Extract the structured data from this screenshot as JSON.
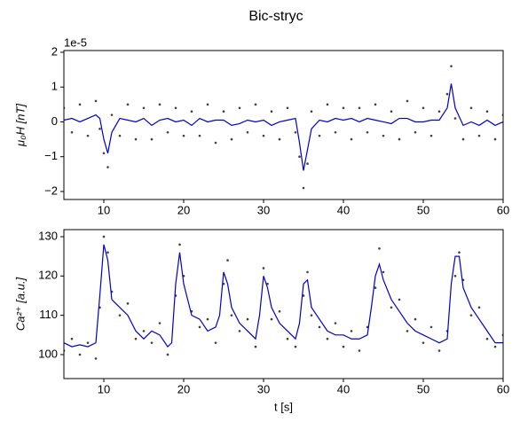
{
  "title": "Bic-stryc",
  "chart_data": [
    {
      "type": "line",
      "ylabel": "μ₀H [nT]",
      "y_offset_label": "1e-5",
      "xlim": [
        5,
        60
      ],
      "xticks": [
        10,
        20,
        30,
        40,
        50,
        60
      ],
      "ylim": [
        -2.23,
        2.05
      ],
      "yticks": [
        {
          "value": -2,
          "label": "−2"
        },
        {
          "value": -1,
          "label": "−1"
        },
        0,
        1,
        2
      ],
      "series": [
        {
          "type": "scatter",
          "color": "#000000",
          "x": [
            5,
            6,
            7,
            8,
            9,
            9.5,
            10,
            10.5,
            11,
            12,
            13,
            14,
            15,
            16,
            17,
            18,
            19,
            20,
            21,
            22,
            23,
            24,
            25,
            26,
            27,
            28,
            29,
            30,
            31,
            32,
            33,
            34,
            34.5,
            35,
            35.5,
            36,
            37,
            38,
            39,
            40,
            41,
            42,
            43,
            44,
            45,
            46,
            47,
            48,
            49,
            50,
            51,
            52,
            53,
            53.5,
            54,
            55,
            56,
            57,
            58,
            59,
            60
          ],
          "values": [
            0.4,
            -0.3,
            0.5,
            -0.4,
            0.6,
            -0.2,
            -0.9,
            -1.3,
            0.2,
            -0.4,
            0.5,
            -0.5,
            0.4,
            -0.5,
            0.5,
            -0.3,
            0.4,
            -0.4,
            0.3,
            -0.4,
            0.5,
            -0.6,
            0.3,
            -0.5,
            0.4,
            -0.3,
            0.5,
            -0.4,
            0.3,
            -0.5,
            0.4,
            -0.3,
            -1.0,
            -1.9,
            -1.2,
            0.3,
            -0.4,
            0.5,
            -0.3,
            0.4,
            -0.5,
            0.4,
            -0.3,
            0.5,
            -0.4,
            0.3,
            -0.5,
            0.6,
            -0.3,
            0.4,
            -0.4,
            0.3,
            0.8,
            1.6,
            0.1,
            -0.5,
            0.4,
            -0.4,
            0.3,
            -0.5,
            0.2
          ]
        },
        {
          "type": "line",
          "color": "#0000cc",
          "x": [
            5,
            6,
            7,
            8,
            9,
            9.5,
            10,
            10.5,
            11,
            12,
            13,
            14,
            15,
            16,
            17,
            18,
            19,
            20,
            21,
            22,
            23,
            24,
            25,
            26,
            27,
            28,
            29,
            30,
            31,
            32,
            33,
            34,
            34.5,
            35,
            35.5,
            36,
            37,
            38,
            39,
            40,
            41,
            42,
            43,
            44,
            45,
            46,
            47,
            48,
            49,
            50,
            51,
            52,
            53,
            53.5,
            54,
            55,
            56,
            57,
            58,
            59,
            60
          ],
          "values": [
            0.05,
            0.1,
            0,
            0.1,
            0.2,
            0.1,
            -0.5,
            -0.9,
            -0.3,
            0.1,
            0.05,
            0,
            0.1,
            -0.1,
            0.05,
            0.1,
            0,
            0.05,
            -0.1,
            0.1,
            0,
            0.05,
            0.05,
            -0.1,
            -0.05,
            0.05,
            0,
            0.05,
            -0.1,
            0,
            0.05,
            0.1,
            -0.6,
            -1.4,
            -0.8,
            -0.2,
            0.05,
            0,
            0.1,
            0.05,
            0.1,
            0,
            0.1,
            0.05,
            0,
            -0.05,
            0.1,
            0.1,
            0,
            0,
            0.05,
            0.05,
            0.4,
            1.1,
            0.4,
            -0.1,
            0,
            -0.1,
            0.05,
            -0.1,
            0
          ]
        }
      ]
    },
    {
      "type": "line",
      "ylabel": "Ca²⁺ [a.u.]",
      "xlabel": "t [s]",
      "xlim": [
        5,
        60
      ],
      "xticks": [
        10,
        20,
        30,
        40,
        50,
        60
      ],
      "ylim": [
        93.9,
        131.8
      ],
      "yticks": [
        100,
        110,
        120,
        130
      ],
      "series": [
        {
          "type": "scatter",
          "color": "#000000",
          "x": [
            5,
            6,
            7,
            8,
            9,
            9.5,
            10,
            10.5,
            11,
            12,
            13,
            14,
            15,
            16,
            17,
            18,
            19,
            19.5,
            20,
            21,
            22,
            23,
            24,
            25,
            25.5,
            26,
            27,
            28,
            29,
            30,
            30.5,
            31,
            32,
            33,
            34,
            35,
            35.5,
            36,
            37,
            38,
            39,
            40,
            41,
            42,
            43,
            44,
            44.5,
            45,
            46,
            47,
            48,
            49,
            50,
            51,
            52,
            53,
            54,
            54.5,
            55,
            56,
            57,
            58,
            59,
            60
          ],
          "values": [
            101,
            104,
            100,
            103,
            99,
            112,
            130,
            126,
            116,
            110,
            113,
            104,
            106,
            103,
            108,
            100,
            115,
            128,
            120,
            111,
            107,
            109,
            103,
            118,
            124,
            110,
            106,
            109,
            102,
            122,
            118,
            109,
            111,
            104,
            102,
            115,
            121,
            110,
            107,
            104,
            108,
            102,
            106,
            101,
            107,
            117,
            127,
            121,
            112,
            114,
            106,
            109,
            103,
            107,
            101,
            106,
            120,
            126,
            119,
            110,
            112,
            104,
            102,
            105
          ]
        },
        {
          "type": "line",
          "color": "#0000cc",
          "x": [
            5,
            6,
            7,
            8,
            9,
            9.5,
            10,
            10.5,
            11,
            12,
            13,
            14,
            15,
            16,
            17,
            18,
            18.5,
            19,
            19.5,
            20,
            21,
            22,
            23,
            24,
            24.5,
            25,
            25.5,
            26,
            27,
            28,
            29,
            29.5,
            30,
            30.5,
            31,
            32,
            33,
            34,
            34.5,
            35,
            35.5,
            36,
            37,
            38,
            39,
            40,
            41,
            42,
            43,
            43.5,
            44,
            44.5,
            45,
            46,
            47,
            48,
            49,
            50,
            51,
            52,
            53,
            53.5,
            54,
            54.5,
            55,
            56,
            57,
            58,
            59,
            60
          ],
          "values": [
            103,
            102,
            102.5,
            102,
            103,
            115,
            128,
            124,
            114,
            112,
            110,
            106,
            104,
            106,
            105,
            102,
            103,
            118,
            126,
            118,
            110,
            109,
            106,
            107,
            110,
            121,
            118,
            112,
            108,
            106,
            104,
            110,
            120,
            117,
            112,
            108,
            106,
            104,
            108,
            118,
            119,
            112,
            109,
            106,
            105,
            105,
            104,
            104,
            105,
            112,
            120,
            123,
            119,
            114,
            111,
            108,
            106,
            105,
            104,
            103,
            104,
            118,
            125,
            125,
            117,
            112,
            109,
            106,
            103,
            103
          ]
        }
      ]
    }
  ]
}
